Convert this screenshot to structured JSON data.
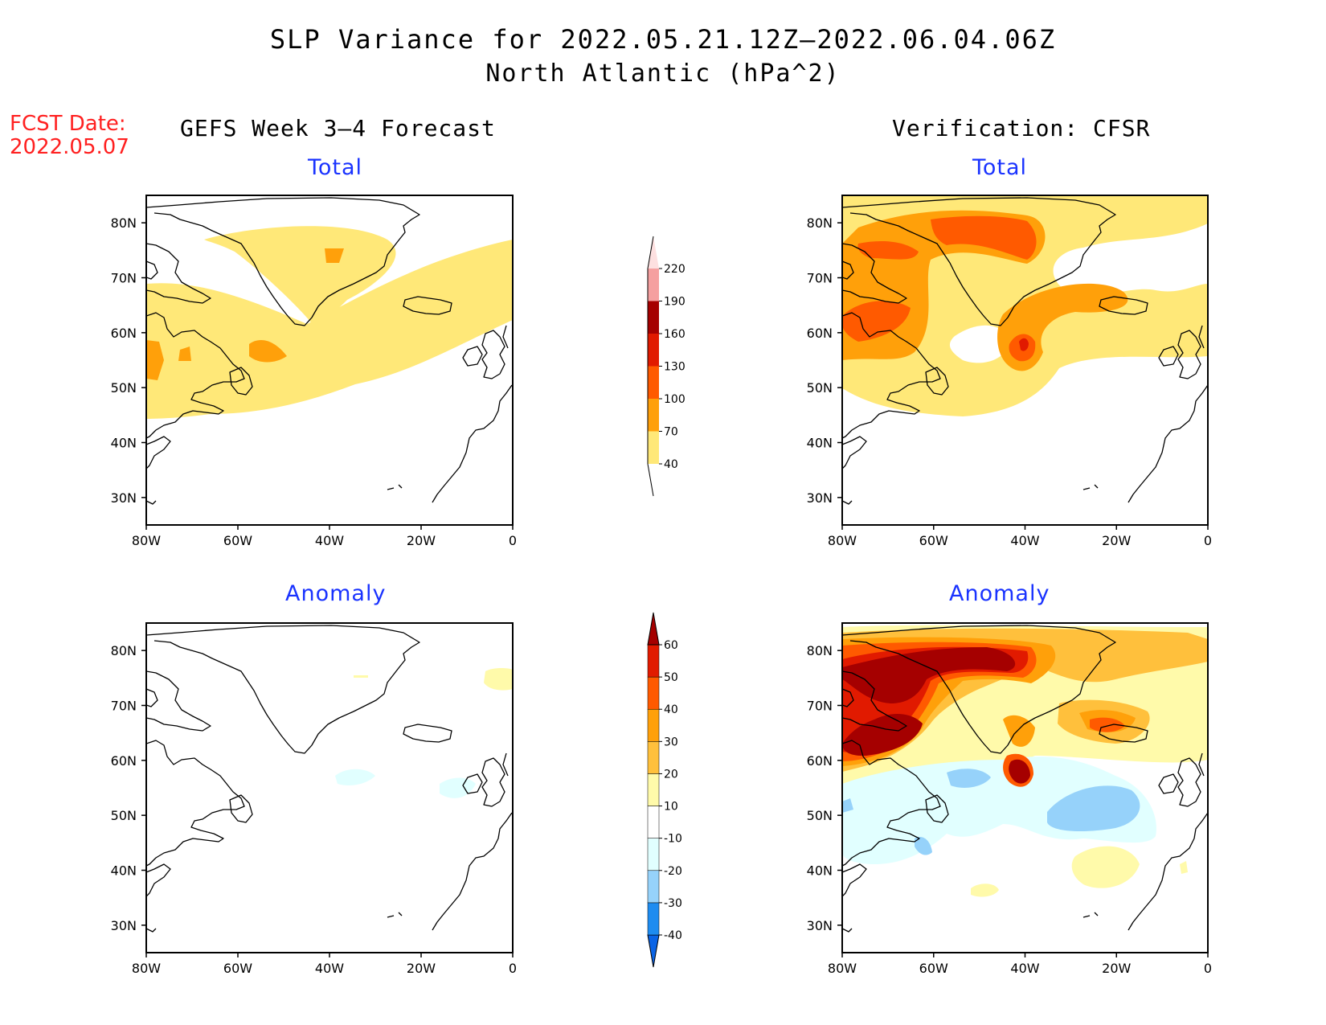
{
  "header": {
    "title": "SLP Variance for 2022.05.21.12Z—2022.06.04.06Z",
    "subtitle": "North Atlantic (hPa^2)",
    "fcst_date_label": "FCST Date:",
    "fcst_date": "2022.05.07"
  },
  "columns": {
    "left": "GEFS Week 3—4 Forecast",
    "right": "Verification: CFSR"
  },
  "panels": {
    "total": "Total",
    "anomaly": "Anomaly"
  },
  "axes": {
    "lat_labels": [
      "80N",
      "70N",
      "60N",
      "50N",
      "40N",
      "30N"
    ],
    "lon_labels": [
      "80W",
      "60W",
      "40W",
      "20W",
      "0"
    ],
    "lat_range": [
      25,
      85
    ],
    "lon_range": [
      -80,
      0
    ]
  },
  "colorbars": {
    "total": {
      "labels": [
        "40",
        "70",
        "100",
        "130",
        "160",
        "190",
        "220"
      ],
      "colors": [
        "#ffe878",
        "#ffa00a",
        "#ff5a00",
        "#e11a00",
        "#a50000",
        "#f5a0a0",
        "#fde0e0"
      ]
    },
    "anomaly": {
      "labels": [
        "-40",
        "-30",
        "-20",
        "-10",
        "10",
        "20",
        "30",
        "40",
        "50",
        "60"
      ],
      "colors": [
        "#0a64e6",
        "#1e8cf0",
        "#96d2fa",
        "#e1ffff",
        "#ffffff",
        "#fffaaa",
        "#ffc03c",
        "#ffa00a",
        "#ff5a00",
        "#e11a00",
        "#a50000"
      ]
    }
  },
  "colors": {
    "fcst_date": "#ff2020",
    "panel_title": "#1a33ff"
  }
}
